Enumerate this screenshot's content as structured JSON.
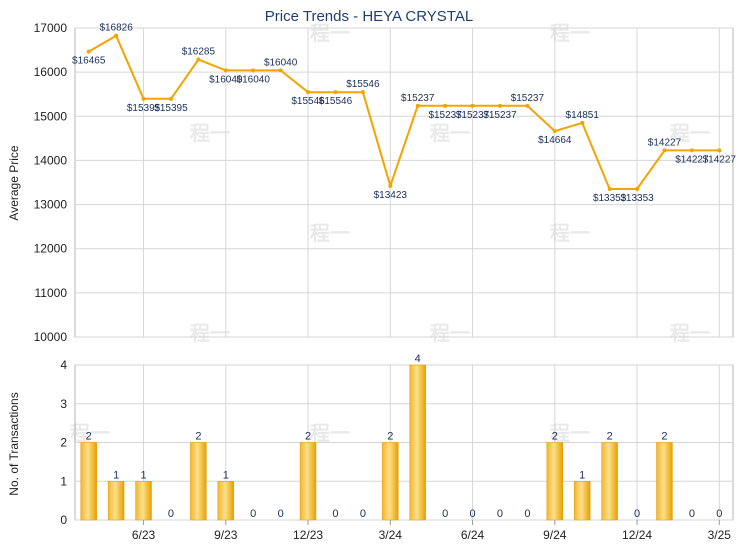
{
  "chart_data": [
    {
      "type": "line",
      "title": "Price Trends - HEYA CRYSTAL",
      "ylabel": "Average Price",
      "xlabel": "",
      "ylim": [
        10000,
        17000
      ],
      "yticks": [
        "10000",
        "11000",
        "12000",
        "13000",
        "14000",
        "15000",
        "16000",
        "17000"
      ],
      "line_color": "#f5a300",
      "grid": true,
      "values": [
        16465,
        16826,
        15395,
        15395,
        16285,
        16040,
        16040,
        16040,
        15546,
        15546,
        15546,
        13423,
        15237,
        15237,
        15237,
        15237,
        15237,
        14664,
        14851,
        13353,
        13353,
        14227,
        14227,
        14227
      ],
      "labels": [
        "$16465",
        "$16826",
        "$15395",
        "$15395",
        "$16285",
        "$16040",
        "$16040",
        "$16040",
        "$15546",
        "$15546",
        "$15546",
        "$13423",
        "$15237",
        "$15237",
        "$15237",
        "$15237",
        "$15237",
        "$14664",
        "$14851",
        "$13353",
        "$13353",
        "$14227",
        "$14227",
        "$14227"
      ]
    },
    {
      "type": "bar",
      "ylabel": "No. of Transactions",
      "xlabel": "",
      "ylim": [
        0,
        4
      ],
      "yticks": [
        "0",
        "1",
        "2",
        "3",
        "4"
      ],
      "bar_color": "#f5a300",
      "grid": true,
      "values": [
        2,
        1,
        1,
        0,
        2,
        1,
        0,
        0,
        2,
        0,
        0,
        2,
        4,
        0,
        0,
        0,
        0,
        2,
        1,
        2,
        0,
        2,
        0,
        0
      ],
      "value_labels": [
        "2",
        "1",
        "1",
        "0",
        "2",
        "1",
        "0",
        "0",
        "2",
        "0",
        "0",
        "2",
        "4",
        "0",
        "0",
        "0",
        "0",
        "2",
        "1",
        "2",
        "0",
        "2",
        "0",
        "0"
      ]
    }
  ],
  "x_axis": {
    "tick_labels": [
      "6/23",
      "9/23",
      "12/23",
      "3/24",
      "6/24",
      "9/24",
      "12/24",
      "3/25"
    ],
    "tick_indices": [
      2,
      5,
      8,
      11,
      14,
      17,
      20,
      23
    ]
  },
  "watermark": "程一"
}
